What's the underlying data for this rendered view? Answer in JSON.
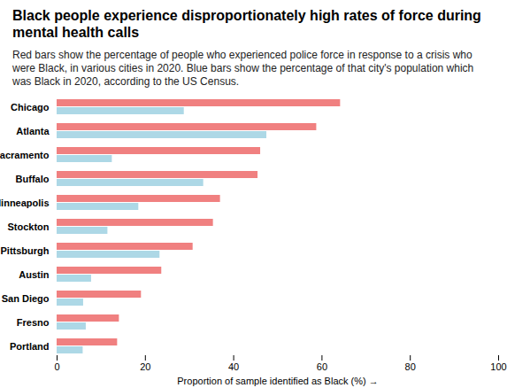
{
  "chart_data": {
    "type": "bar",
    "orientation": "horizontal",
    "title": "Black people experience disproportionately high rates of force during mental health calls",
    "subtitle": "Red bars show the percentage of people who experienced police force in response to a crisis who were Black, in various cities in 2020. Blue bars show the percentage of that city's population which was Black in 2020, according to the US Census.",
    "x_label": "Proportion of sample identified as Black (%)",
    "categories": [
      "Chicago",
      "Atlanta",
      "Sacramento",
      "Buffalo",
      "Minneapolis",
      "Stockton",
      "Pittsburgh",
      "Austin",
      "San Diego",
      "Fresno",
      "Portland"
    ],
    "series": [
      {
        "color": "#f08080",
        "values": [
          64.2,
          58.8,
          46.1,
          45.5,
          37.0,
          35.4,
          30.8,
          23.7,
          19.1,
          14.1,
          13.7
        ]
      },
      {
        "color": "#add8e6",
        "values": [
          28.8,
          47.5,
          12.5,
          33.2,
          18.5,
          11.5,
          23.3,
          7.8,
          6.0,
          6.6,
          5.9
        ]
      }
    ],
    "xlim": [
      0,
      100
    ],
    "xticks": [
      0,
      20,
      40,
      60,
      80,
      100
    ],
    "grid": false
  }
}
